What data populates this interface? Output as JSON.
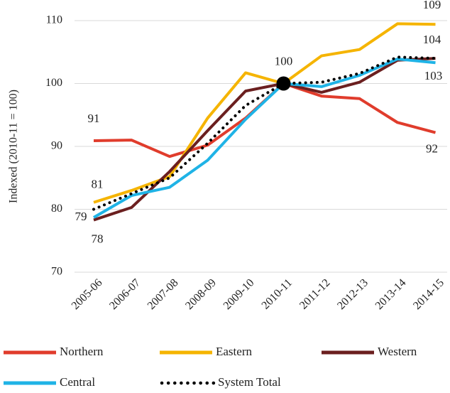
{
  "chart_data": {
    "type": "line",
    "ylabel": "Indexed (2010-11 = 100)",
    "categories": [
      "2005-06",
      "2006-07",
      "2007-08",
      "2008-09",
      "2009-10",
      "2010-11",
      "2011-12",
      "2012-13",
      "2013-14",
      "2014-15"
    ],
    "series": [
      {
        "name": "Northern",
        "color": "#e03c2c",
        "values": [
          90.9,
          91.0,
          88.4,
          90.2,
          94.5,
          100,
          98.0,
          97.6,
          93.8,
          92.2
        ],
        "value_labels": [
          "91",
          null,
          null,
          null,
          null,
          null,
          null,
          null,
          null,
          "92"
        ]
      },
      {
        "name": "Eastern",
        "color": "#f5b400",
        "values": [
          81.1,
          83.0,
          85.2,
          94.5,
          101.7,
          100,
          104.4,
          105.4,
          109.5,
          109.4
        ],
        "value_labels": [
          "81",
          null,
          null,
          null,
          null,
          null,
          null,
          null,
          null,
          "109"
        ]
      },
      {
        "name": "Western",
        "color": "#6b1f1f",
        "values": [
          78.3,
          80.3,
          86.0,
          92.5,
          98.8,
          100,
          98.6,
          100.2,
          103.7,
          104.0
        ],
        "value_labels": [
          "78",
          null,
          null,
          null,
          null,
          null,
          null,
          null,
          null,
          "104"
        ]
      },
      {
        "name": "Central",
        "color": "#1fb3e6",
        "values": [
          78.7,
          82.2,
          83.5,
          87.8,
          94.3,
          100,
          99.5,
          101.3,
          103.9,
          103.3
        ],
        "value_labels": [
          "79",
          null,
          null,
          null,
          null,
          null,
          null,
          null,
          null,
          "103"
        ]
      },
      {
        "name": "System Total",
        "color": "#000000",
        "dotted": true,
        "values": [
          80.0,
          82.5,
          85.0,
          90.5,
          96.5,
          100,
          100.2,
          101.6,
          104.2,
          104.0
        ],
        "value_labels": [
          null,
          null,
          null,
          null,
          null,
          "100",
          null,
          null,
          null,
          null
        ]
      }
    ],
    "ylim": [
      70,
      110
    ],
    "yticks": [
      70,
      80,
      90,
      100,
      110
    ],
    "grid": true
  }
}
